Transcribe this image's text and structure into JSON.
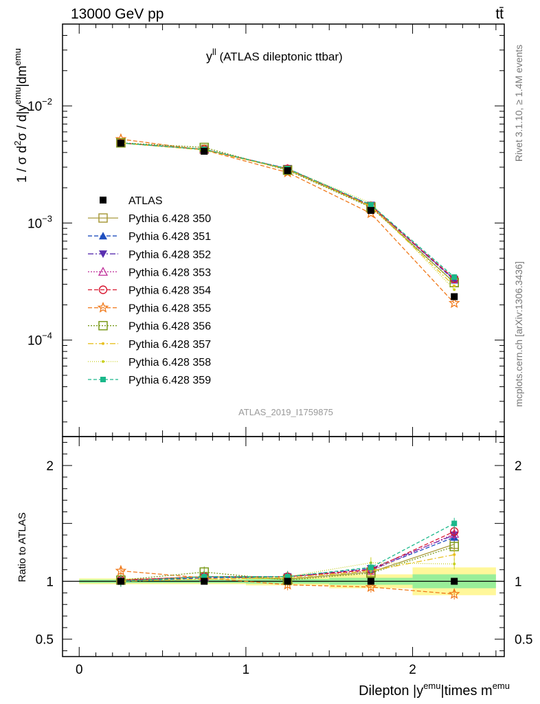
{
  "header": {
    "energy_label": "13000 GeV pp",
    "process_label": "tt̄"
  },
  "side_labels": {
    "rivet": "Rivet 3.1.10, ≥ 1.4M events",
    "mcplots": "mcplots.cern.ch [arXiv:1306.3436]"
  },
  "chart_data": {
    "type": "line",
    "title_main": "y",
    "title_sup": "ll",
    "title_rest": " (ATLAS dileptonic ttbar)",
    "analysis_id": "ATLAS_2019_I1759875",
    "xlabel": {
      "main": "Dilepton |y",
      "sup1": "emu",
      "mid": "|times m",
      "sup2": "emu"
    },
    "ylabel": {
      "a": "1 / σ  d",
      "b": "2",
      "c": "σ / d|y",
      "d": "emu",
      "e": "|dm",
      "f": "emu"
    },
    "ratio_ylabel": "Ratio to ATLAS",
    "xlim": [
      -0.1,
      2.55
    ],
    "ylim": [
      1.5e-05,
      0.05
    ],
    "yscale": "log",
    "ratio_ylim": [
      0.35,
      2.25
    ],
    "x_ticks": [
      {
        "v": 0,
        "label": "0"
      },
      {
        "v": 1,
        "label": "1"
      },
      {
        "v": 2,
        "label": "2"
      }
    ],
    "y_ticks": [
      {
        "exp": -4,
        "label": "10",
        "sup": "−4"
      },
      {
        "exp": -3,
        "label": "10",
        "sup": "−3"
      },
      {
        "exp": -2,
        "label": "10",
        "sup": "−2"
      }
    ],
    "ratio_ticks": [
      {
        "v": 0.5,
        "label": "0.5"
      },
      {
        "v": 1,
        "label": "1"
      },
      {
        "v": 2,
        "label": "2"
      }
    ],
    "x": [
      0.25,
      0.75,
      1.25,
      1.75,
      2.25
    ],
    "bin_edges": [
      0,
      0.5,
      1,
      1.5,
      2,
      2.5
    ],
    "data": {
      "name": "ATLAS",
      "values": [
        0.0048,
        0.0041,
        0.0028,
        0.00128,
        0.000235
      ]
    },
    "band_inner": [
      0.015,
      0.015,
      0.02,
      0.03,
      0.06
    ],
    "band_outer": [
      0.025,
      0.025,
      0.035,
      0.06,
      0.12
    ],
    "series": [
      {
        "name": "Pythia 6.428 350",
        "color": "#a89a3c",
        "dash": "",
        "marker": "square-open",
        "values": [
          0.00483,
          0.00427,
          0.00286,
          0.00138,
          0.00031
        ],
        "ratio": [
          1.01,
          1.04,
          1.02,
          1.08,
          1.32
        ]
      },
      {
        "name": "Pythia 6.428 351",
        "color": "#1f4fbf",
        "dash": "6,3",
        "marker": "triangle-up",
        "values": [
          0.00482,
          0.00424,
          0.00291,
          0.00141,
          0.000325
        ],
        "ratio": [
          1.0,
          1.03,
          1.04,
          1.1,
          1.38
        ]
      },
      {
        "name": "Pythia 6.428 352",
        "color": "#5a2fb0",
        "dash": "8,3,2,3",
        "marker": "triangle-down",
        "values": [
          0.00482,
          0.00425,
          0.00292,
          0.00142,
          0.00033
        ],
        "ratio": [
          1.0,
          1.04,
          1.04,
          1.11,
          1.4
        ]
      },
      {
        "name": "Pythia 6.428 353",
        "color": "#c0309a",
        "dash": "2,2",
        "marker": "triangle-open",
        "values": [
          0.00484,
          0.00425,
          0.0029,
          0.0014,
          0.00033
        ],
        "ratio": [
          1.01,
          1.04,
          1.04,
          1.09,
          1.41
        ]
      },
      {
        "name": "Pythia 6.428 354",
        "color": "#d8152f",
        "dash": "6,3",
        "marker": "circle-open",
        "values": [
          0.00483,
          0.00426,
          0.0029,
          0.0014,
          0.000335
        ],
        "ratio": [
          1.01,
          1.04,
          1.04,
          1.1,
          1.43
        ]
      },
      {
        "name": "Pythia 6.428 355",
        "color": "#f07818",
        "dash": "6,3",
        "marker": "star",
        "values": [
          0.0052,
          0.0042,
          0.0027,
          0.00121,
          0.000207
        ],
        "ratio": [
          1.09,
          1.03,
          0.97,
          0.95,
          0.89
        ]
      },
      {
        "name": "Pythia 6.428 356",
        "color": "#7a9a1a",
        "dash": "2,2",
        "marker": "square-open",
        "values": [
          0.00484,
          0.00442,
          0.00282,
          0.00136,
          0.00031
        ],
        "ratio": [
          1.01,
          1.08,
          1.01,
          1.07,
          1.3
        ]
      },
      {
        "name": "Pythia 6.428 357",
        "color": "#e8c020",
        "dash": "8,3,2,3",
        "marker": "dot",
        "values": [
          0.00481,
          0.0042,
          0.00288,
          0.00139,
          0.00029
        ],
        "ratio": [
          1.0,
          1.02,
          1.03,
          1.09,
          1.23
        ]
      },
      {
        "name": "Pythia 6.428 358",
        "color": "#c8d020",
        "dash": "1,2",
        "marker": "dot",
        "values": [
          0.0048,
          0.00427,
          0.0029,
          0.00148,
          0.00027
        ],
        "ratio": [
          1.0,
          1.04,
          1.04,
          1.16,
          1.15
        ]
      },
      {
        "name": "Pythia 6.428 359",
        "color": "#1ab88a",
        "dash": "5,3",
        "marker": "square-filled",
        "values": [
          0.00482,
          0.00425,
          0.00291,
          0.00143,
          0.000345
        ],
        "ratio": [
          1.0,
          1.04,
          1.04,
          1.12,
          1.5
        ]
      }
    ]
  }
}
